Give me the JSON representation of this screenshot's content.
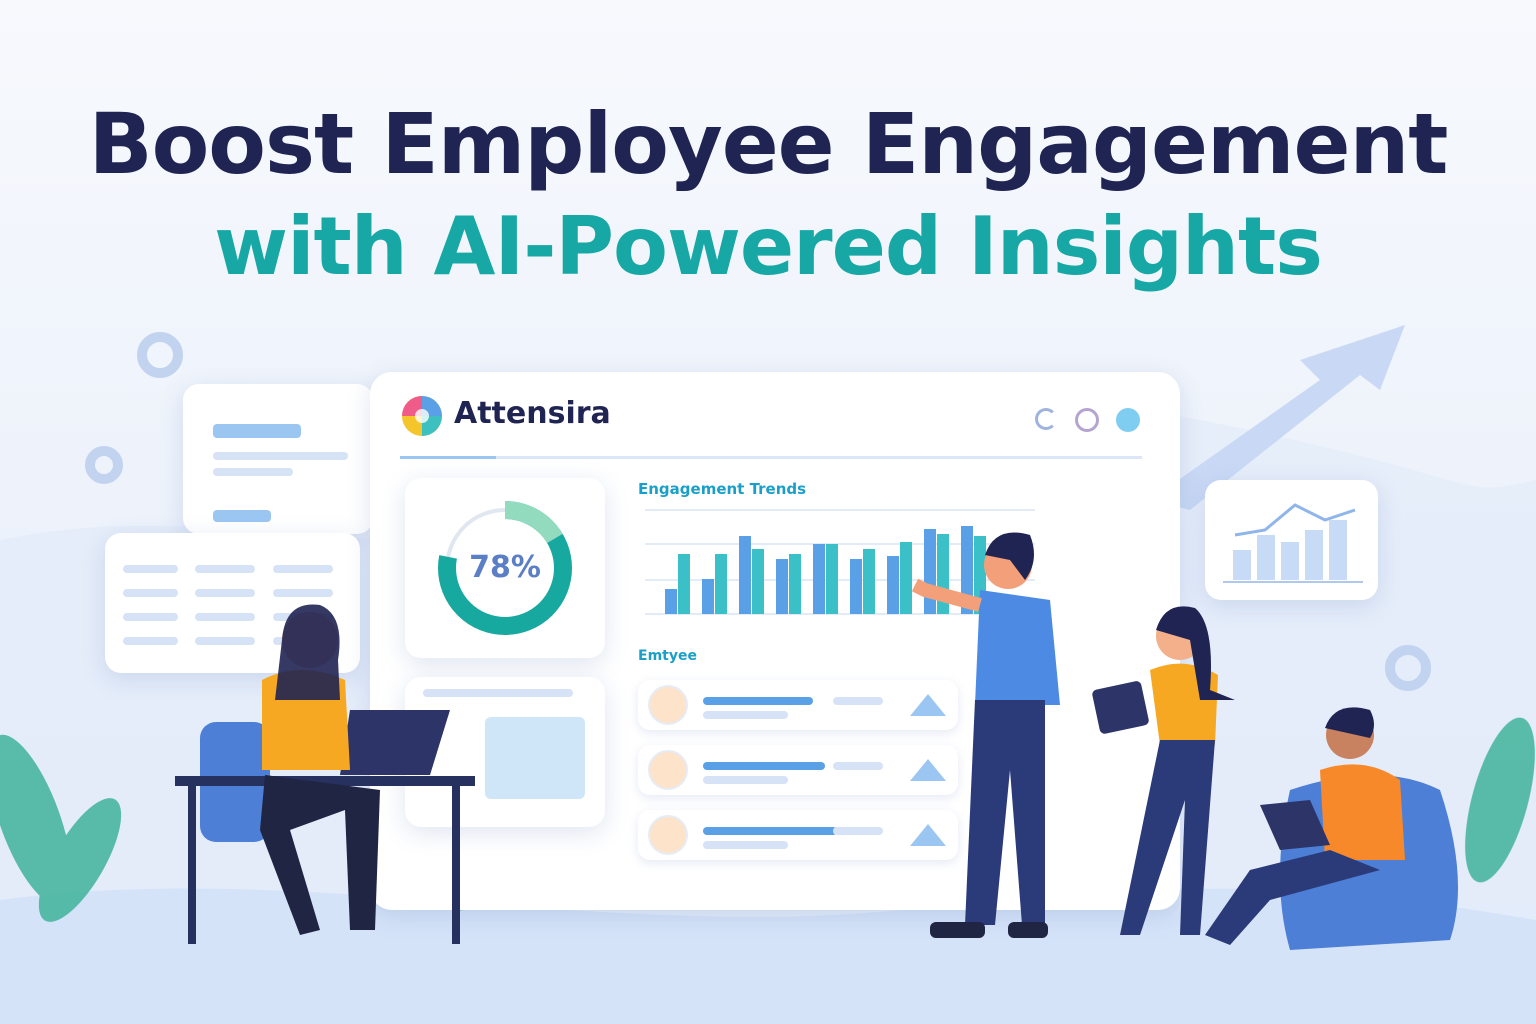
{
  "headline": {
    "title": "Boost Employee Engagement",
    "subtitle": "with AI-Powered Insights"
  },
  "dashboard": {
    "brand": "Attensira",
    "window_controls": [
      "minimize",
      "maximize",
      "close"
    ],
    "engagement_score": {
      "value": "78%",
      "fraction": 0.78
    },
    "chart_title": "Engagement Trends",
    "employee_section_title": "Emtyee",
    "employee_rows": 3
  },
  "colors": {
    "navy": "#1f2452",
    "teal": "#17a8a6",
    "blue": "#5aa0e6",
    "accent_orange": "#f7a823"
  }
}
